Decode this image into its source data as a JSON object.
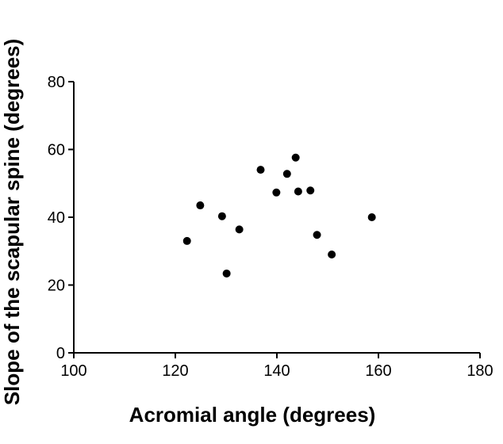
{
  "chart_data": {
    "type": "scatter",
    "title": "",
    "xlabel": "Acromial angle (degrees)",
    "ylabel": "Slope of the scapular spine (degrees)",
    "xlim": [
      100,
      180
    ],
    "ylim": [
      0,
      80
    ],
    "x_ticks": [
      "100",
      "120",
      "140",
      "160",
      "180"
    ],
    "y_ticks": [
      "0",
      "20",
      "40",
      "60",
      "80"
    ],
    "grid": false,
    "legend": "none",
    "marker_color": "#000000",
    "series": [
      {
        "points": [
          {
            "x": 122.3,
            "y": 33.0
          },
          {
            "x": 124.9,
            "y": 43.5
          },
          {
            "x": 129.2,
            "y": 40.3
          },
          {
            "x": 130.1,
            "y": 23.4
          },
          {
            "x": 132.6,
            "y": 36.4
          },
          {
            "x": 136.8,
            "y": 54.0
          },
          {
            "x": 139.9,
            "y": 47.3
          },
          {
            "x": 142.0,
            "y": 52.8
          },
          {
            "x": 143.7,
            "y": 57.6
          },
          {
            "x": 144.2,
            "y": 47.6
          },
          {
            "x": 146.6,
            "y": 47.9
          },
          {
            "x": 147.9,
            "y": 34.8
          },
          {
            "x": 150.8,
            "y": 29.0
          },
          {
            "x": 158.7,
            "y": 40.0
          }
        ]
      }
    ]
  }
}
